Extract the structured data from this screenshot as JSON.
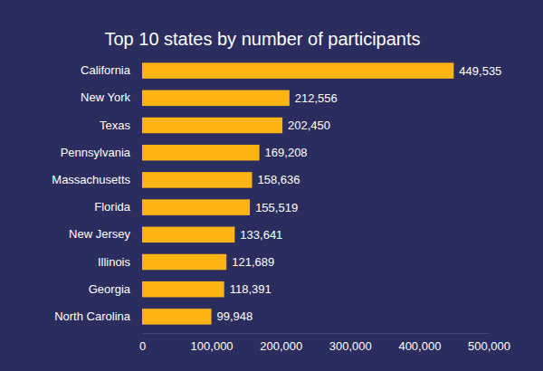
{
  "chart_data": {
    "type": "bar",
    "orientation": "horizontal",
    "title": "Top 10 states by number of participants",
    "categories": [
      "California",
      "New York",
      "Texas",
      "Pennsylvania",
      "Massachusetts",
      "Florida",
      "New Jersey",
      "Illinois",
      "Georgia",
      "North Carolina"
    ],
    "values": [
      449535,
      212556,
      202450,
      169208,
      158636,
      155519,
      133641,
      121689,
      118391,
      99948
    ],
    "value_labels": [
      "449,535",
      "212,556",
      "202,450",
      "169,208",
      "158,636",
      "155,519",
      "133,641",
      "121,689",
      "118,391",
      "99,948"
    ],
    "data_labels": true,
    "color": "#fdb515",
    "xlim": [
      0,
      500000
    ],
    "xticks": [
      0,
      {
        "value": 100000,
        "label": "100,000"
      },
      {
        "value": 200000,
        "label": "200,000"
      },
      {
        "value": 300000,
        "label": "300,000"
      },
      {
        "value": 400000,
        "label": "400,000"
      },
      {
        "value": 500000,
        "label": "500,000"
      }
    ],
    "grid": false
  }
}
